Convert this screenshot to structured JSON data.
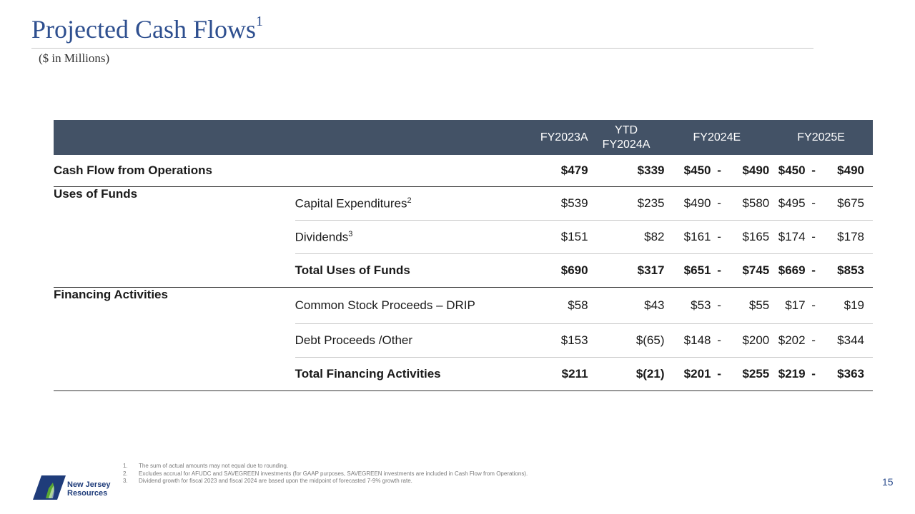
{
  "title": "Projected Cash Flows",
  "title_sup": "1",
  "subtitle": "($ in Millions)",
  "table": {
    "headers": {
      "fy2023a": "FY2023A",
      "ytd_l1": "YTD",
      "ytd_l2": "FY2024A",
      "fy2024e": "FY2024E",
      "fy2025e": "FY2025E"
    },
    "cfo": {
      "label": "Cash Flow from Operations",
      "fy2023a": "$479",
      "ytd": "$339",
      "fy24_lo": "$450",
      "fy24_dash": "-",
      "fy24_hi": "$490",
      "fy25_lo": "$450",
      "fy25_dash": "-",
      "fy25_hi": "$490"
    },
    "uses": {
      "section_label": "Uses of Funds",
      "capex": {
        "label": "Capital Expenditures",
        "sup": "2",
        "fy2023a": "$539",
        "ytd": "$235",
        "fy24_lo": "$490",
        "fy24_dash": "-",
        "fy24_hi": "$580",
        "fy25_lo": "$495",
        "fy25_dash": "-",
        "fy25_hi": "$675"
      },
      "dividends": {
        "label": "Dividends",
        "sup": "3",
        "fy2023a": "$151",
        "ytd": "$82",
        "fy24_lo": "$161",
        "fy24_dash": "-",
        "fy24_hi": "$165",
        "fy25_lo": "$174",
        "fy25_dash": "-",
        "fy25_hi": "$178"
      },
      "total": {
        "label": "Total Uses of Funds",
        "fy2023a": "$690",
        "ytd": "$317",
        "fy24_lo": "$651",
        "fy24_dash": "-",
        "fy24_hi": "$745",
        "fy25_lo": "$669",
        "fy25_dash": "-",
        "fy25_hi": "$853"
      }
    },
    "financing": {
      "section_label": "Financing Activities",
      "drip": {
        "label": "Common Stock Proceeds – DRIP",
        "fy2023a": "$58",
        "ytd": "$43",
        "fy24_lo": "$53",
        "fy24_dash": "-",
        "fy24_hi": "$55",
        "fy25_lo": "$17",
        "fy25_dash": "-",
        "fy25_hi": "$19"
      },
      "debt": {
        "label": "Debt Proceeds /Other",
        "fy2023a": "$153",
        "ytd": "$(65)",
        "fy24_lo": "$148",
        "fy24_dash": "-",
        "fy24_hi": "$200",
        "fy25_lo": "$202",
        "fy25_dash": "-",
        "fy25_hi": "$344"
      },
      "total": {
        "label": "Total Financing Activities",
        "fy2023a": "$211",
        "ytd": "$(21)",
        "fy24_lo": "$201",
        "fy24_dash": "-",
        "fy24_hi": "$255",
        "fy25_lo": "$219",
        "fy25_dash": "-",
        "fy25_hi": "$363"
      }
    }
  },
  "footnotes": [
    {
      "num": "1.",
      "text": "The sum of actual amounts may not equal due to rounding."
    },
    {
      "num": "2.",
      "text": "Excludes accrual for AFUDC and SAVEGREEN investments (for GAAP purposes, SAVEGREEN investments are included in Cash Flow from Operations)."
    },
    {
      "num": "3.",
      "text": "Dividend growth for fiscal 2023 and fiscal 2024 are based upon the midpoint of forecasted 7-9% growth rate."
    }
  ],
  "logo": {
    "line1": "New Jersey",
    "line2": "Resources",
    "icon": "njr-logo-icon"
  },
  "page_number": "15",
  "colors": {
    "title": "#2e4f8f",
    "header_bg": "#435266"
  }
}
